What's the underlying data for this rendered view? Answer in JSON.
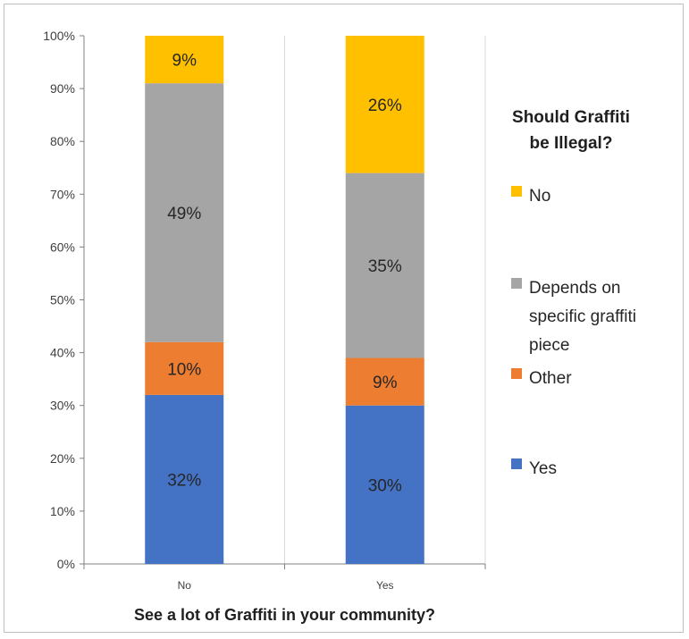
{
  "chart_data": {
    "type": "bar",
    "stacked": true,
    "categories": [
      "No",
      "Yes"
    ],
    "series": [
      {
        "name": "Yes",
        "values": [
          32,
          30
        ],
        "labels": [
          "32%",
          "30%"
        ],
        "color": "#4472c4"
      },
      {
        "name": "Other",
        "values": [
          10,
          9
        ],
        "labels": [
          "10%",
          "9%"
        ],
        "color": "#ed7d31"
      },
      {
        "name": "Depends on specific graffiti piece",
        "values": [
          49,
          35
        ],
        "labels": [
          "49%",
          "35%"
        ],
        "color": "#a5a5a5"
      },
      {
        "name": "No",
        "values": [
          9,
          26
        ],
        "labels": [
          "9%",
          "26%"
        ],
        "color": "#ffc000"
      }
    ],
    "xlabel": "See a lot of Graffiti in your community?",
    "ylabel": "",
    "ylim": [
      0,
      100
    ],
    "yticks": [
      "0%",
      "10%",
      "20%",
      "30%",
      "40%",
      "50%",
      "60%",
      "70%",
      "80%",
      "90%",
      "100%"
    ],
    "grid": {
      "vertical": true,
      "horizontal": false
    },
    "legend": {
      "title_lines": [
        "Should Graffiti",
        "be Illegal?"
      ],
      "placement": "right",
      "entries": [
        {
          "lines": [
            "No"
          ],
          "color": "#ffc000"
        },
        {
          "lines": [
            "Depends on",
            "specific graffiti",
            "piece"
          ],
          "color": "#a5a5a5"
        },
        {
          "lines": [
            "Other"
          ],
          "color": "#ed7d31"
        },
        {
          "lines": [
            "Yes"
          ],
          "color": "#4472c4"
        }
      ]
    }
  }
}
